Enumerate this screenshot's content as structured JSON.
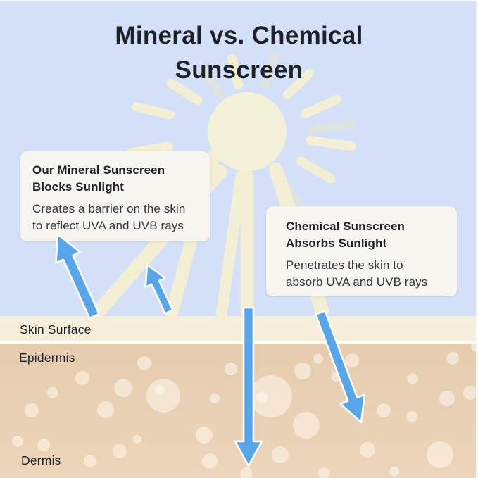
{
  "title": {
    "text": "Mineral vs. Chemical\nSunscreen"
  },
  "callouts": {
    "mineral": {
      "heading": "Our Mineral Sunscreen\nBlocks Sunlight",
      "body": "Creates a barrier on the skin\nto reflect UVA and UVB rays"
    },
    "chemical": {
      "heading": "Chemical Sunscreen\nAbsorbs Sunlight",
      "body": "Penetrates the skin to\nabsorb UVA and UVB rays"
    }
  },
  "layers": {
    "surface_label": "Skin Surface",
    "epidermis_label": "Epidermis",
    "dermis_label": "Dermis"
  },
  "icons": {
    "sun": "sun-icon",
    "reflected_arrows": "reflected-ray-arrow-icons",
    "penetrating_arrows": "penetrating-ray-arrow-icons"
  },
  "colors": {
    "sky": "#d3e0f8",
    "sun": "#f4f1da",
    "ray": "#f3efd5",
    "ray_muted": "#dde2e2",
    "box": "#f7f5ef",
    "band": "#f4eedb",
    "divider": "#fefdf8",
    "skin_top": "#e5ccaf",
    "skin_bottom": "#ecd5ba",
    "bubble": "rgba(255,247,236,0.55)",
    "arrow": "#58a6ea",
    "arrow_outline": "#ffffff",
    "ink": "#1e2227",
    "ink_body": "#34383d"
  }
}
